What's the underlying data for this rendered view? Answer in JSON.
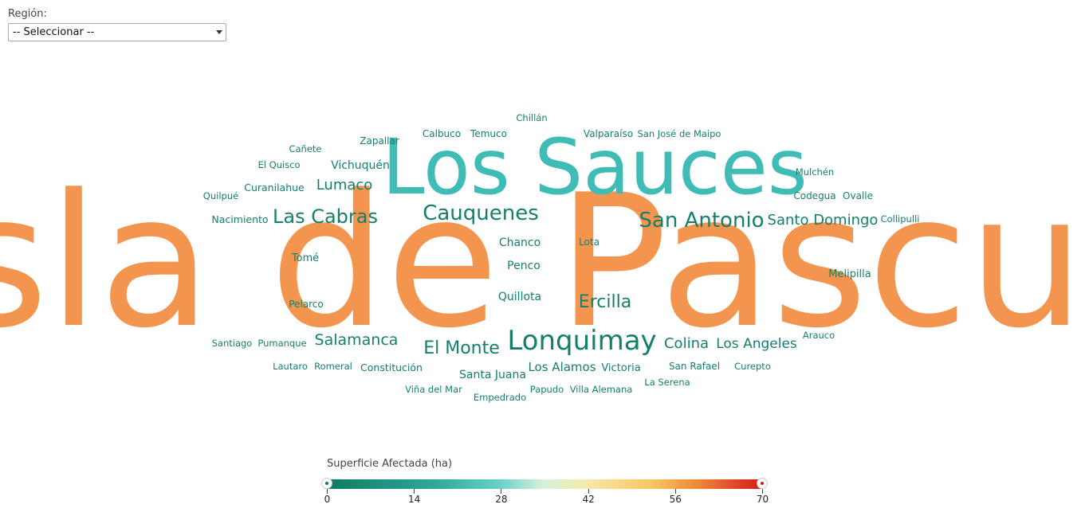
{
  "filter": {
    "label": "Región:",
    "selected": "-- Seleccionar --"
  },
  "legend": {
    "title": "Superficie Afectada (ha)",
    "ticks": [
      "0",
      "14",
      "28",
      "42",
      "56",
      "70"
    ],
    "min_color": "#0f7a60",
    "max_color": "#d7191c"
  },
  "colors": {
    "large": "#f4954f",
    "medium": "#3fbcb5",
    "small": "#157f6b"
  },
  "chart_data": {
    "type": "wordcloud",
    "value_range": [
      0,
      70
    ],
    "words": [
      {
        "text": "Isla de Pascua",
        "tier": "large"
      },
      {
        "text": "Los Sauces",
        "tier": "medium"
      },
      {
        "text": "Lonquimay",
        "tier": "small"
      },
      {
        "text": "Cauquenes",
        "tier": "small"
      },
      {
        "text": "San Antonio",
        "tier": "small"
      },
      {
        "text": "Las Cabras",
        "tier": "small"
      },
      {
        "text": "Santo Domingo",
        "tier": "small"
      },
      {
        "text": "El Monte",
        "tier": "small"
      },
      {
        "text": "Ercilla",
        "tier": "small"
      },
      {
        "text": "Salamanca",
        "tier": "small"
      },
      {
        "text": "Colina",
        "tier": "small"
      },
      {
        "text": "Los Angeles",
        "tier": "small"
      },
      {
        "text": "Lumaco",
        "tier": "small"
      },
      {
        "text": "Los Alamos",
        "tier": "small"
      },
      {
        "text": "Vichuquén",
        "tier": "small"
      },
      {
        "text": "Chanco",
        "tier": "small"
      },
      {
        "text": "Penco",
        "tier": "small"
      },
      {
        "text": "Quillota",
        "tier": "small"
      },
      {
        "text": "Santa Juana",
        "tier": "small"
      },
      {
        "text": "Victoria",
        "tier": "small"
      },
      {
        "text": "Melipilla",
        "tier": "small"
      },
      {
        "text": "Constitución",
        "tier": "small"
      },
      {
        "text": "Tomé",
        "tier": "small"
      },
      {
        "text": "Nacimiento",
        "tier": "small"
      },
      {
        "text": "Curanilahue",
        "tier": "small"
      },
      {
        "text": "Zapallar",
        "tier": "small"
      },
      {
        "text": "Calbuco",
        "tier": "small"
      },
      {
        "text": "Temuco",
        "tier": "small"
      },
      {
        "text": "Chillán",
        "tier": "small"
      },
      {
        "text": "Valparaíso",
        "tier": "small"
      },
      {
        "text": "San José de Maipo",
        "tier": "small"
      },
      {
        "text": "Mulchén",
        "tier": "small"
      },
      {
        "text": "Codegua",
        "tier": "small"
      },
      {
        "text": "Ovalle",
        "tier": "small"
      },
      {
        "text": "Collipulli",
        "tier": "small"
      },
      {
        "text": "Cañete",
        "tier": "small"
      },
      {
        "text": "El Quisco",
        "tier": "small"
      },
      {
        "text": "Quilpué",
        "tier": "small"
      },
      {
        "text": "Lota",
        "tier": "small"
      },
      {
        "text": "Pelarco",
        "tier": "small"
      },
      {
        "text": "Santiago",
        "tier": "small"
      },
      {
        "text": "Pumanque",
        "tier": "small"
      },
      {
        "text": "Lautaro",
        "tier": "small"
      },
      {
        "text": "Romeral",
        "tier": "small"
      },
      {
        "text": "Viña del Mar",
        "tier": "small"
      },
      {
        "text": "Empedrado",
        "tier": "small"
      },
      {
        "text": "Papudo",
        "tier": "small"
      },
      {
        "text": "Villa Alemana",
        "tier": "small"
      },
      {
        "text": "San Rafael",
        "tier": "small"
      },
      {
        "text": "Curepto",
        "tier": "small"
      },
      {
        "text": "La Serena",
        "tier": "small"
      },
      {
        "text": "Arauco",
        "tier": "small"
      }
    ]
  }
}
